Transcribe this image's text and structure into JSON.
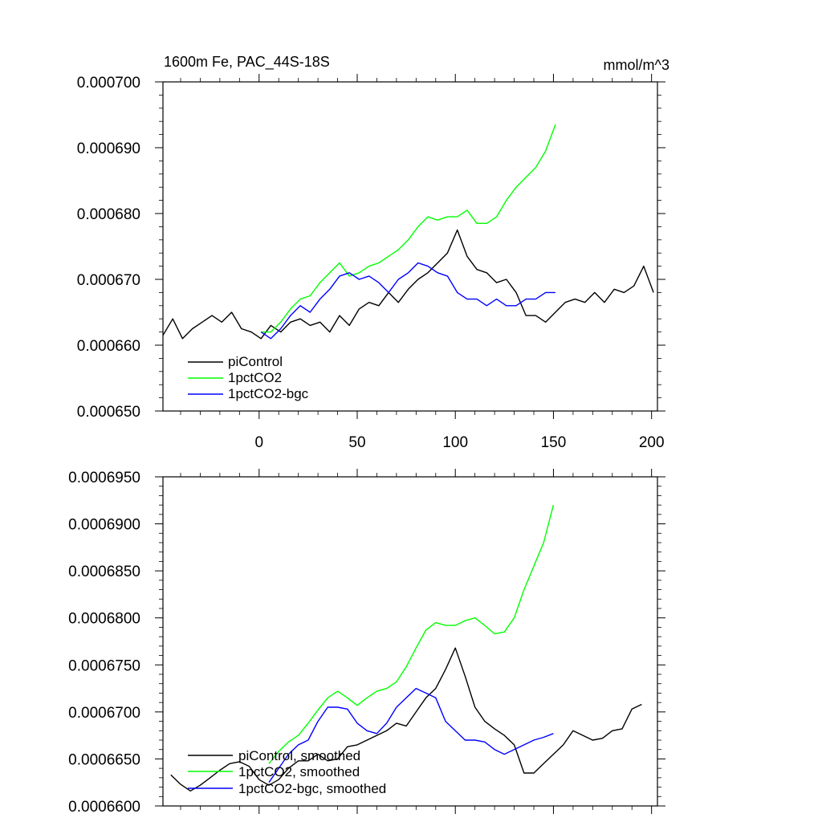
{
  "colors": {
    "piControl": "#000000",
    "1pctCO2": "#00ff00",
    "1pctCO2-bgc": "#0000ff"
  },
  "chart_data": [
    {
      "type": "line",
      "title": "1600m Fe, PAC_44S-18S",
      "units": "mmol/m^3",
      "xlim": [
        -49,
        203
      ],
      "ylim": [
        0.00065,
        0.0007
      ],
      "xticks": [
        0,
        50,
        100,
        150,
        200
      ],
      "xtick_labels": [
        "0",
        "50",
        "100",
        "150",
        "200"
      ],
      "yticks": [
        0.00065,
        0.00066,
        0.00067,
        0.00068,
        0.00069,
        0.0007
      ],
      "ytick_labels": [
        "0.000650",
        "0.000660",
        "0.000670",
        "0.000680",
        "0.000690",
        "0.000700"
      ],
      "legend": [
        "piControl",
        "1pctCO2",
        "1pctCO2-bgc"
      ],
      "legend_position": "lower-left",
      "series": [
        {
          "name": "piControl",
          "x": [
            -49,
            -44,
            -39,
            -34,
            -29,
            -24,
            -19,
            -14,
            -9,
            -4,
            1,
            6,
            11,
            16,
            21,
            26,
            31,
            36,
            41,
            46,
            51,
            56,
            61,
            66,
            71,
            76,
            81,
            86,
            91,
            96,
            101,
            106,
            111,
            116,
            121,
            126,
            131,
            136,
            141,
            146,
            151,
            156,
            161,
            166,
            171,
            176,
            181,
            186,
            191,
            196,
            201
          ],
          "values": [
            0.0006615,
            0.000664,
            0.000661,
            0.0006625,
            0.0006635,
            0.0006645,
            0.0006635,
            0.000665,
            0.0006625,
            0.000662,
            0.000661,
            0.000663,
            0.000662,
            0.0006635,
            0.000664,
            0.000663,
            0.0006635,
            0.000662,
            0.0006645,
            0.000663,
            0.0006655,
            0.0006665,
            0.000666,
            0.000668,
            0.0006665,
            0.0006685,
            0.00067,
            0.000671,
            0.0006725,
            0.000674,
            0.0006775,
            0.0006735,
            0.0006715,
            0.000671,
            0.0006695,
            0.00067,
            0.000668,
            0.0006645,
            0.0006645,
            0.0006635,
            0.000665,
            0.0006665,
            0.000667,
            0.0006665,
            0.000668,
            0.0006665,
            0.0006685,
            0.000668,
            0.000669,
            0.000672,
            0.000668
          ]
        },
        {
          "name": "1pctCO2",
          "x": [
            1,
            6,
            11,
            16,
            21,
            26,
            31,
            36,
            41,
            46,
            51,
            56,
            61,
            66,
            71,
            76,
            81,
            86,
            91,
            96,
            101,
            106,
            111,
            116,
            121,
            126,
            131,
            136,
            141,
            146,
            151
          ],
          "values": [
            0.000662,
            0.000662,
            0.0006635,
            0.0006655,
            0.000667,
            0.0006675,
            0.0006695,
            0.000671,
            0.0006725,
            0.0006705,
            0.000671,
            0.000672,
            0.0006725,
            0.0006735,
            0.0006745,
            0.000676,
            0.000678,
            0.0006795,
            0.000679,
            0.0006795,
            0.0006795,
            0.0006805,
            0.0006785,
            0.0006785,
            0.0006795,
            0.000682,
            0.000684,
            0.0006855,
            0.000687,
            0.0006895,
            0.0006935
          ]
        },
        {
          "name": "1pctCO2-bgc",
          "x": [
            1,
            6,
            11,
            16,
            21,
            26,
            31,
            36,
            41,
            46,
            51,
            56,
            61,
            66,
            71,
            76,
            81,
            86,
            91,
            96,
            101,
            106,
            111,
            116,
            121,
            126,
            131,
            136,
            141,
            146,
            151
          ],
          "values": [
            0.000662,
            0.000661,
            0.0006625,
            0.0006645,
            0.000666,
            0.000665,
            0.000667,
            0.0006685,
            0.0006705,
            0.000671,
            0.00067,
            0.0006705,
            0.0006695,
            0.000668,
            0.00067,
            0.000671,
            0.0006725,
            0.000672,
            0.000671,
            0.0006705,
            0.000668,
            0.000667,
            0.000667,
            0.000666,
            0.000667,
            0.000666,
            0.000666,
            0.000667,
            0.000667,
            0.000668,
            0.000668
          ]
        }
      ]
    },
    {
      "type": "line",
      "title": "",
      "xlim": [
        -49,
        203
      ],
      "ylim": [
        0.00066,
        0.000695
      ],
      "xticks": [
        0,
        50,
        100,
        150,
        200
      ],
      "yticks": [
        0.00066,
        0.000665,
        0.00067,
        0.000675,
        0.00068,
        0.000685,
        0.00069,
        0.000695
      ],
      "ytick_labels": [
        "0.0006600",
        "0.0006650",
        "0.0006700",
        "0.0006750",
        "0.0006800",
        "0.0006850",
        "0.0006900",
        "0.0006950"
      ],
      "legend": [
        "piControl, smoothed",
        "1pctCO2, smoothed",
        "1pctCO2-bgc, smoothed"
      ],
      "legend_position": "lower-left",
      "series": [
        {
          "name": "piControl, smoothed",
          "x": [
            -45,
            -40,
            -35,
            -30,
            -25,
            -20,
            -15,
            -10,
            -5,
            0,
            5,
            10,
            15,
            20,
            25,
            30,
            35,
            40,
            45,
            50,
            55,
            60,
            65,
            70,
            75,
            80,
            85,
            90,
            95,
            100,
            105,
            110,
            115,
            120,
            125,
            130,
            135,
            140,
            145,
            150,
            155,
            160,
            165,
            170,
            175,
            180,
            185,
            190,
            195
          ],
          "values": [
            0.0006633,
            0.0006623,
            0.0006616,
            0.0006622,
            0.000663,
            0.0006638,
            0.0006645,
            0.0006647,
            0.0006642,
            0.0006628,
            0.0006622,
            0.0006628,
            0.000664,
            0.0006648,
            0.0006648,
            0.0006655,
            0.0006648,
            0.000665,
            0.0006663,
            0.0006665,
            0.000667,
            0.0006675,
            0.000668,
            0.0006688,
            0.0006685,
            0.00067,
            0.0006715,
            0.0006725,
            0.0006745,
            0.0006768,
            0.0006738,
            0.0006705,
            0.000669,
            0.0006682,
            0.0006675,
            0.0006665,
            0.0006635,
            0.0006635,
            0.0006645,
            0.0006655,
            0.0006665,
            0.000668,
            0.0006675,
            0.000667,
            0.0006672,
            0.000668,
            0.0006682,
            0.0006703,
            0.0006708
          ]
        },
        {
          "name": "1pctCO2, smoothed",
          "x": [
            5,
            10,
            15,
            20,
            25,
            30,
            35,
            40,
            45,
            50,
            55,
            60,
            65,
            70,
            75,
            80,
            85,
            90,
            95,
            100,
            105,
            110,
            115,
            120,
            125,
            130,
            135,
            140,
            145,
            150
          ],
          "values": [
            0.0006645,
            0.0006658,
            0.0006668,
            0.0006675,
            0.0006688,
            0.0006702,
            0.0006715,
            0.0006722,
            0.0006715,
            0.0006707,
            0.0006715,
            0.0006722,
            0.0006725,
            0.0006732,
            0.0006748,
            0.0006768,
            0.0006787,
            0.0006795,
            0.0006792,
            0.0006792,
            0.0006797,
            0.00068,
            0.0006792,
            0.0006783,
            0.0006785,
            0.00068,
            0.000683,
            0.0006855,
            0.000688,
            0.000692
          ]
        },
        {
          "name": "1pctCO2-bgc, smoothed",
          "x": [
            5,
            10,
            15,
            20,
            25,
            30,
            35,
            40,
            45,
            50,
            55,
            60,
            65,
            70,
            75,
            80,
            85,
            90,
            95,
            100,
            105,
            110,
            115,
            120,
            125,
            130,
            135,
            140,
            145,
            150
          ],
          "values": [
            0.0006625,
            0.000664,
            0.0006655,
            0.0006665,
            0.000667,
            0.000669,
            0.0006705,
            0.0006705,
            0.0006703,
            0.0006688,
            0.000668,
            0.0006677,
            0.0006688,
            0.0006705,
            0.0006715,
            0.0006725,
            0.000672,
            0.0006715,
            0.000669,
            0.000668,
            0.000667,
            0.000667,
            0.0006668,
            0.000666,
            0.0006655,
            0.000666,
            0.0006665,
            0.000667,
            0.0006673,
            0.0006677
          ]
        }
      ]
    }
  ]
}
